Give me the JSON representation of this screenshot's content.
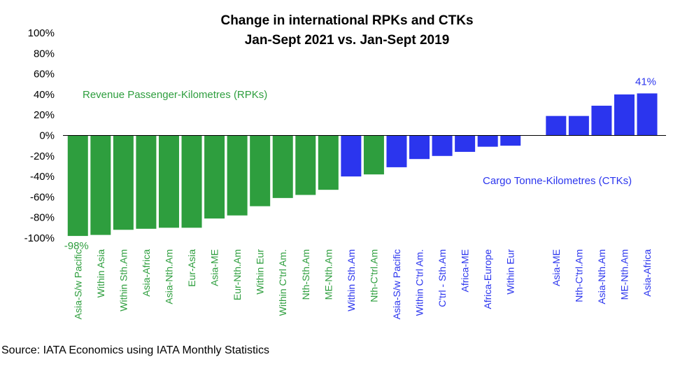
{
  "chart_data": {
    "type": "bar",
    "title": "Change in international RPKs and CTKs",
    "subtitle": "Jan-Sept 2021 vs. Jan-Sept 2019",
    "xlabel": "",
    "ylabel": "",
    "ylim": [
      -100,
      100
    ],
    "yticks": [
      "100%",
      "80%",
      "60%",
      "40%",
      "20%",
      "0%",
      "-20%",
      "-40%",
      "-60%",
      "-80%",
      "-100%"
    ],
    "grid": false,
    "legend": "none",
    "categories": [
      "Asia-S/w Pacific",
      "Within Asia",
      "Within Sth.Am",
      "Asia-Africa",
      "Asia-Nth.Am",
      "Eur-Asia",
      "Asia-ME",
      "Eur-Nth.Am",
      "Within Eur",
      "Within C'trl Am.",
      "Nth-Sth.Am",
      "ME-Nth.Am",
      "Within Sth.Am",
      "Nth-C'trl.Am",
      "Asia-S/w Pacific",
      "Within C'trl Am.",
      "C'trl - Sth.Am",
      "Africa-ME",
      "Africa-Europe",
      "Within Eur",
      "",
      "Asia-ME",
      "Nth-C'trl.Am",
      "Asia-Nth.Am",
      "ME-Nth.Am",
      "Asia-Africa"
    ],
    "values": [
      -98,
      -97,
      -92,
      -91,
      -90,
      -90,
      -81,
      -78,
      -69,
      -61,
      -58,
      -53,
      -40,
      -38,
      -31,
      -23,
      -20,
      -16,
      -11,
      -10,
      null,
      19,
      19,
      29,
      40,
      41
    ],
    "group": [
      "rpk",
      "rpk",
      "rpk",
      "rpk",
      "rpk",
      "rpk",
      "rpk",
      "rpk",
      "rpk",
      "rpk",
      "rpk",
      "rpk",
      "ctk",
      "rpk",
      "ctk",
      "ctk",
      "ctk",
      "ctk",
      "ctk",
      "ctk",
      "",
      "ctk",
      "ctk",
      "ctk",
      "ctk",
      "ctk"
    ],
    "series_labels": {
      "rpk": "Revenue Passenger-Kilometres (RPKs)",
      "ctk": "Cargo Tonne-Kilometres (CTKs)"
    },
    "colors": {
      "rpk": "#2e9e3e",
      "ctk": "#2b35ee"
    },
    "annotations": {
      "min_label": "-98%",
      "max_label": "41%"
    }
  },
  "source": "Source: IATA Economics using IATA Monthly Statistics"
}
